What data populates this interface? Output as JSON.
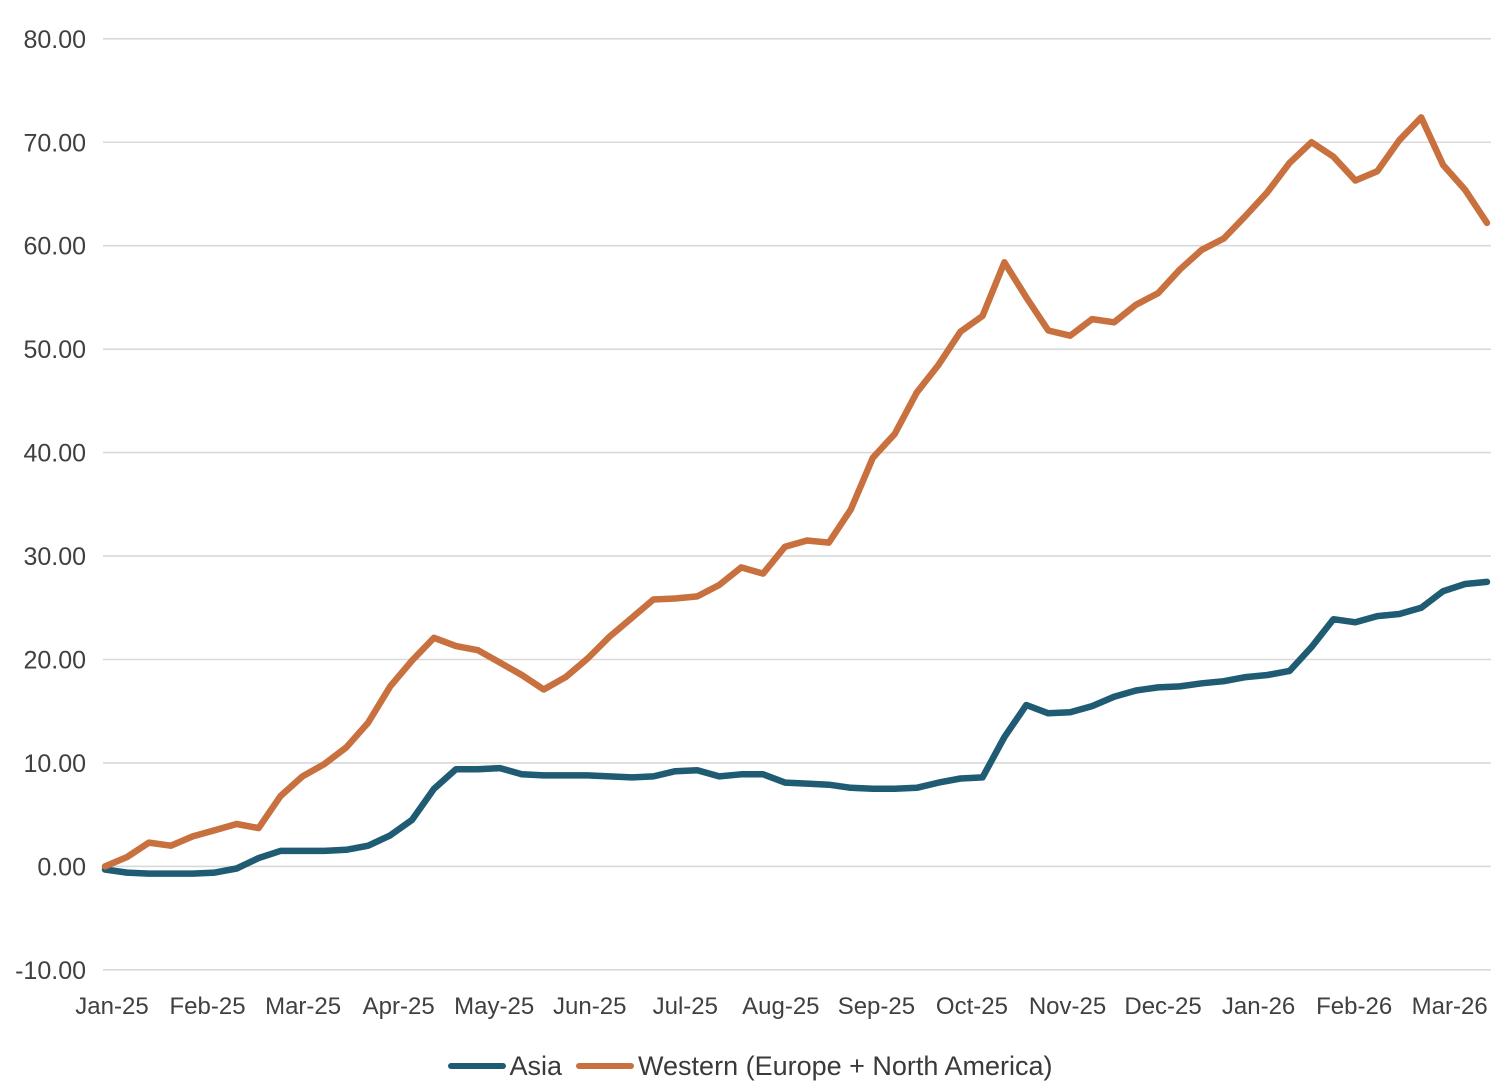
{
  "chart_data": {
    "type": "line",
    "title": "",
    "xlabel": "",
    "ylabel": "",
    "ylim": [
      -10,
      80
    ],
    "y_ticks": [
      80,
      70,
      60,
      50,
      40,
      30,
      20,
      10,
      0,
      -10
    ],
    "y_tick_labels": [
      "80.00",
      "70.00",
      "60.00",
      "50.00",
      "40.00",
      "30.00",
      "20.00",
      "10.00",
      "0.00",
      "-10.00"
    ],
    "x_tick_labels": [
      "Jan-25",
      "Feb-25",
      "Mar-25",
      "Apr-25",
      "May-25",
      "Jun-25",
      "Jul-25",
      "Aug-25",
      "Sep-25",
      "Oct-25",
      "Nov-25",
      "Dec-25",
      "Jan-26",
      "Feb-26",
      "Mar-26"
    ],
    "x_unit": "weeks from Jan-25 through mid Mar-26",
    "grid": "horizontal",
    "gridline_color": "#d9d9d9",
    "legend_position": "bottom",
    "series": [
      {
        "name": "Asia",
        "color": "#1f5b73",
        "values": [
          -0.3,
          -0.6,
          -0.7,
          -0.7,
          -0.7,
          -0.6,
          -0.2,
          0.8,
          1.5,
          1.5,
          1.5,
          1.6,
          2.0,
          3.0,
          4.5,
          7.5,
          9.4,
          9.4,
          9.5,
          8.9,
          8.8,
          8.8,
          8.8,
          8.7,
          8.6,
          8.7,
          9.2,
          9.3,
          8.7,
          8.9,
          8.9,
          8.1,
          8.0,
          7.9,
          7.6,
          7.5,
          7.5,
          7.6,
          8.1,
          8.5,
          8.6,
          12.5,
          15.6,
          14.8,
          14.9,
          15.5,
          16.4,
          17.0,
          17.3,
          17.4,
          17.7,
          17.9,
          18.3,
          18.5,
          18.9,
          21.2,
          23.9,
          23.6,
          24.2,
          24.4,
          25.0,
          26.6,
          27.3,
          27.5
        ]
      },
      {
        "name": "Western (Europe + North America)",
        "color": "#c9703f",
        "values": [
          0.0,
          0.9,
          2.3,
          2.0,
          2.9,
          3.5,
          4.1,
          3.7,
          6.8,
          8.7,
          9.9,
          11.5,
          13.9,
          17.4,
          19.9,
          22.1,
          21.3,
          20.9,
          19.7,
          18.5,
          17.1,
          18.3,
          20.1,
          22.2,
          24.0,
          25.8,
          25.9,
          26.1,
          27.2,
          28.9,
          28.3,
          30.9,
          31.5,
          31.3,
          34.5,
          39.5,
          41.8,
          45.8,
          48.5,
          51.7,
          53.2,
          58.4,
          55.0,
          51.8,
          51.3,
          52.9,
          52.6,
          54.3,
          55.4,
          57.7,
          59.6,
          60.7,
          62.9,
          65.2,
          68.0,
          70.0,
          68.6,
          66.3,
          67.2,
          70.2,
          72.4,
          67.8,
          65.4,
          62.2
        ]
      }
    ]
  }
}
